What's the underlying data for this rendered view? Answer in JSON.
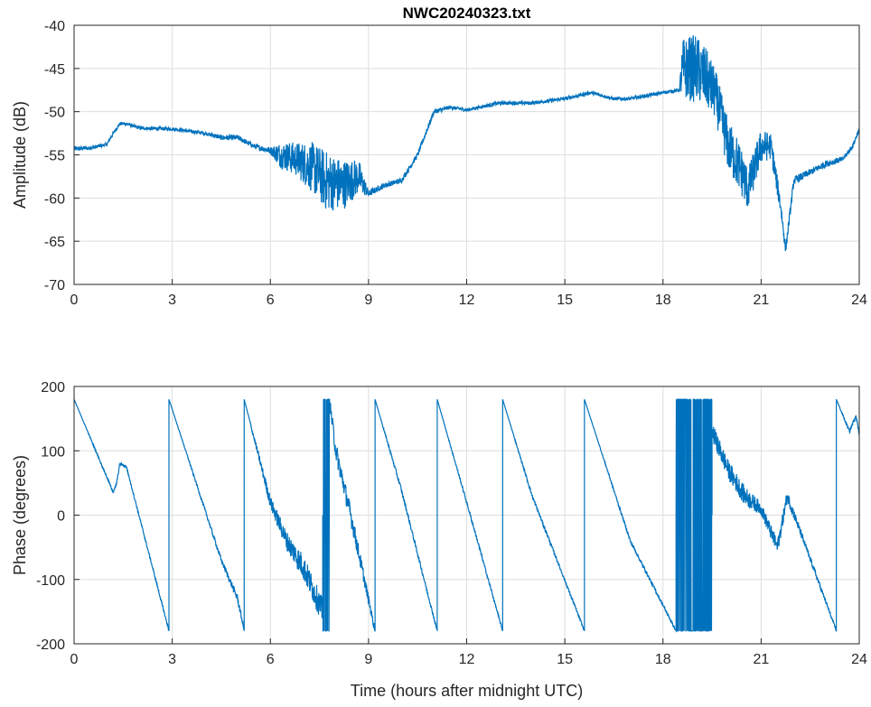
{
  "chart_data": [
    {
      "type": "line",
      "title": "NWC20240323.txt",
      "xlabel": "",
      "ylabel": "Amplitude (dB)",
      "xlim": [
        0,
        24
      ],
      "ylim": [
        -70,
        -40
      ],
      "xticks": [
        "0",
        "3",
        "6",
        "9",
        "12",
        "15",
        "18",
        "21",
        "24"
      ],
      "yticks": [
        "-40",
        "-45",
        "-50",
        "-55",
        "-60",
        "-65",
        "-70"
      ],
      "grid": true,
      "color": "#0072BD",
      "series": [
        {
          "name": "Amplitude",
          "x": [
            0,
            0.5,
            1,
            1.2,
            1.4,
            1.6,
            2,
            3,
            4,
            4.5,
            5,
            5.5,
            6,
            6.3,
            6.8,
            7.3,
            7.7,
            8.2,
            8.7,
            9,
            9.5,
            10,
            10.5,
            11,
            11.5,
            12,
            13,
            14,
            15,
            15.8,
            16.5,
            17,
            18,
            18.5,
            18.6,
            19,
            19.3,
            19.6,
            20,
            20.3,
            20.6,
            21,
            21.3,
            21.6,
            21.75,
            22,
            22.5,
            23,
            23.5,
            23.8,
            24
          ],
          "y": [
            -54.3,
            -54.2,
            -53.8,
            -52.5,
            -51.4,
            -51.4,
            -51.9,
            -52,
            -52.5,
            -53,
            -53,
            -54,
            -54.5,
            -55,
            -55.5,
            -56.5,
            -58,
            -58.5,
            -57.5,
            -59.5,
            -58.5,
            -58,
            -55,
            -50,
            -49.5,
            -49.8,
            -49,
            -49,
            -48.5,
            -47.8,
            -48.5,
            -48.5,
            -47.8,
            -47.5,
            -45,
            -45,
            -46,
            -48,
            -54,
            -56,
            -59,
            -54,
            -54,
            -61,
            -66,
            -58,
            -57,
            -56,
            -55.5,
            -54,
            -52
          ],
          "noise": [
            0.3,
            0.2,
            0.2,
            0.2,
            0.2,
            0.2,
            0.2,
            0.2,
            0.2,
            0.3,
            0.3,
            0.3,
            0.4,
            1.5,
            2,
            3,
            3.5,
            3,
            2,
            0.4,
            0.3,
            0.3,
            0.3,
            0.3,
            0.2,
            0.2,
            0.2,
            0.2,
            0.2,
            0.2,
            0.2,
            0.2,
            0.2,
            0.2,
            3.5,
            4,
            3.5,
            3,
            3,
            3,
            2.5,
            2,
            1.5,
            1,
            0.6,
            0.5,
            0.4,
            0.4,
            0.3,
            0.3,
            0.3
          ]
        }
      ]
    },
    {
      "type": "line",
      "title": "",
      "xlabel": "Time (hours after midnight UTC)",
      "ylabel": "Phase (degrees)",
      "xlim": [
        0,
        24
      ],
      "ylim": [
        -200,
        200
      ],
      "xticks": [
        "0",
        "3",
        "6",
        "9",
        "12",
        "15",
        "18",
        "21",
        "24"
      ],
      "yticks": [
        "200",
        "100",
        "0",
        "-100",
        "-200"
      ],
      "grid": true,
      "color": "#0072BD",
      "series": [
        {
          "name": "Phase",
          "x": [
            0,
            1.2,
            1.3,
            1.4,
            1.6,
            2.9,
            2.9,
            4.5,
            5.0,
            5.2,
            5.2,
            6,
            6.5,
            7,
            7.6,
            7.6,
            7.8,
            7.8,
            8,
            8.5,
            9.2,
            9.2,
            10,
            11.1,
            11.1,
            12,
            13.1,
            13.1,
            14,
            15.6,
            15.6,
            17,
            18.4,
            18.4,
            19.5,
            19.5,
            20,
            20.5,
            21,
            21.5,
            21.8,
            22.3,
            23.3,
            23.3,
            23.7,
            23.9,
            24
          ],
          "y": [
            180,
            35,
            50,
            80,
            75,
            -180,
            180,
            -70,
            -130,
            -180,
            180,
            20,
            -40,
            -80,
            -150,
            0,
            0,
            180,
            100,
            -10,
            -180,
            180,
            40,
            -180,
            180,
            20,
            -180,
            180,
            30,
            -180,
            180,
            -40,
            -180,
            0,
            0,
            130,
            70,
            30,
            10,
            -50,
            30,
            -40,
            -180,
            180,
            130,
            155,
            125
          ],
          "noise": [
            0,
            2,
            2,
            2,
            2,
            2,
            0,
            4,
            6,
            2,
            0,
            10,
            15,
            20,
            20,
            180,
            180,
            10,
            15,
            15,
            5,
            0,
            4,
            2,
            0,
            3,
            2,
            0,
            3,
            2,
            0,
            3,
            2,
            180,
            180,
            15,
            15,
            15,
            10,
            12,
            10,
            5,
            2,
            0,
            3,
            3,
            3
          ]
        }
      ]
    }
  ]
}
